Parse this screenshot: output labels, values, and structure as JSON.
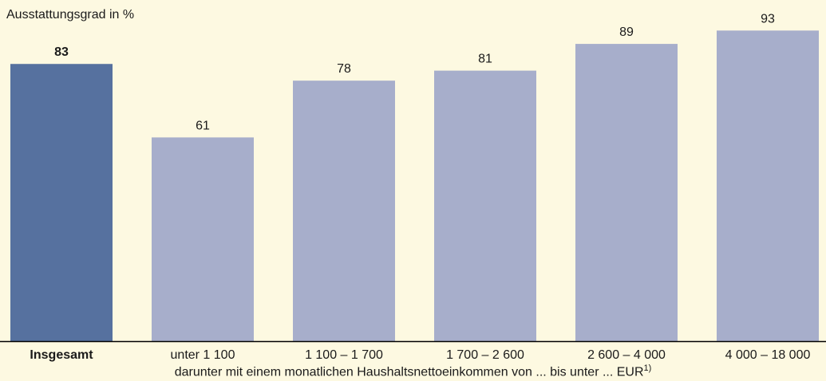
{
  "chart_data": {
    "type": "bar",
    "ylabel": "Ausstattungsgrad in %",
    "categories": [
      "Insgesamt",
      "unter 1 100",
      "1 100 – 1 700",
      "1 700 – 2 600",
      "2 600 – 4 000",
      "4 000 – 18 000"
    ],
    "values": [
      83,
      61,
      78,
      81,
      89,
      93
    ],
    "highlight_index": 0,
    "ylim": [
      0,
      100
    ],
    "grid": false,
    "colors": {
      "highlight": "#56719f",
      "bar": "#a7aecb",
      "axis": "#000000",
      "background": "#fdf9e1"
    },
    "xlabel": "darunter mit einem monatlichen Haushaltsnettoeinkommen von ... bis unter ... EUR",
    "xlabel_footnote": "1)"
  }
}
